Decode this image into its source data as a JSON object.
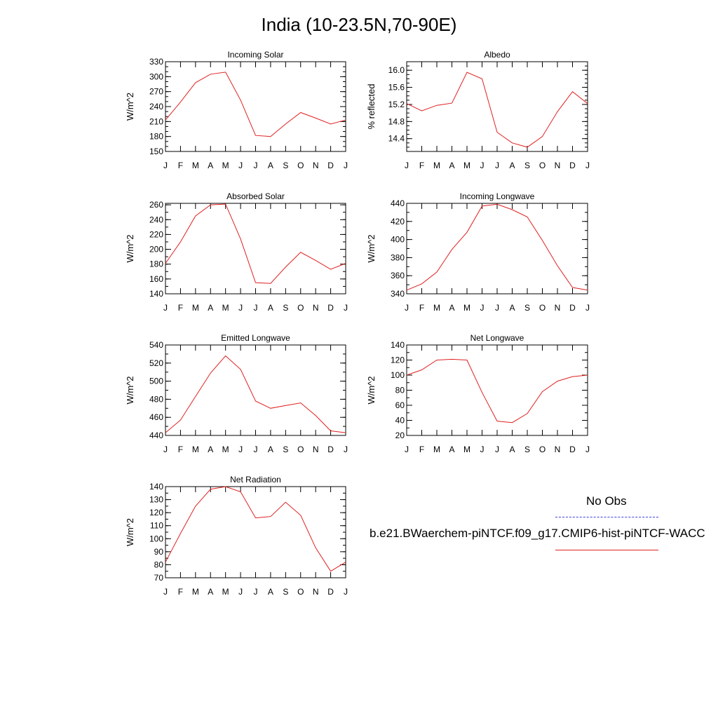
{
  "title": "India (10-23.5N,70-90E)",
  "months": [
    "J",
    "F",
    "M",
    "A",
    "M",
    "J",
    "J",
    "A",
    "S",
    "O",
    "N",
    "D",
    "J"
  ],
  "legend": {
    "obs_label": "No Obs",
    "model_label": "b.e21.BWaerchem-piNTCF.f09_g17.CMIP6-hist-piNTCF-WACC",
    "obs_color": "#4040e0",
    "model_color": "#e02020"
  },
  "chart_data": [
    {
      "type": "line",
      "title": "Incoming Solar",
      "ylabel": "W/m^2",
      "ylim": [
        150,
        330
      ],
      "yticks": [
        150,
        180,
        210,
        240,
        270,
        300,
        330
      ],
      "ytick_labels": [
        "150",
        "180",
        "210",
        "240",
        "270",
        "300",
        "330"
      ],
      "y_minor": 10,
      "x": [
        "J",
        "F",
        "M",
        "A",
        "M",
        "J",
        "J",
        "A",
        "S",
        "O",
        "N",
        "D",
        "J"
      ],
      "series": [
        {
          "values": [
            213,
            249,
            288,
            305,
            309,
            253,
            182,
            180,
            205,
            228,
            217,
            205,
            213
          ]
        }
      ]
    },
    {
      "type": "line",
      "title": "Albedo",
      "ylabel": "% reflected",
      "ylim": [
        14.1,
        16.2
      ],
      "yticks": [
        14.4,
        14.8,
        15.2,
        15.6,
        16.0
      ],
      "ytick_labels": [
        "14.4",
        "14.8",
        "15.2",
        "15.6",
        "16.0"
      ],
      "y_minor": 0.1,
      "x": [
        "J",
        "F",
        "M",
        "A",
        "M",
        "J",
        "J",
        "A",
        "S",
        "O",
        "N",
        "D",
        "J"
      ],
      "series": [
        {
          "values": [
            15.22,
            15.05,
            15.18,
            15.23,
            15.95,
            15.8,
            14.55,
            14.3,
            14.2,
            14.45,
            15.03,
            15.5,
            15.22
          ]
        }
      ]
    },
    {
      "type": "line",
      "title": "Absorbed Solar",
      "ylabel": "W/m^2",
      "ylim": [
        140,
        262
      ],
      "yticks": [
        140,
        160,
        180,
        200,
        220,
        240,
        260
      ],
      "ytick_labels": [
        "140",
        "160",
        "180",
        "200",
        "220",
        "240",
        "260"
      ],
      "y_minor": 10,
      "x": [
        "J",
        "F",
        "M",
        "A",
        "M",
        "J",
        "J",
        "A",
        "S",
        "O",
        "N",
        "D",
        "J"
      ],
      "series": [
        {
          "values": [
            181,
            210,
            245,
            260,
            261,
            214,
            155,
            154,
            176,
            196,
            185,
            173,
            181
          ]
        }
      ]
    },
    {
      "type": "line",
      "title": "Incoming Longwave",
      "ylabel": "W/m^2",
      "ylim": [
        340,
        440
      ],
      "yticks": [
        340,
        360,
        380,
        400,
        420,
        440
      ],
      "ytick_labels": [
        "340",
        "360",
        "380",
        "400",
        "420",
        "440"
      ],
      "y_minor": 10,
      "x": [
        "J",
        "F",
        "M",
        "A",
        "M",
        "J",
        "J",
        "A",
        "S",
        "O",
        "N",
        "D",
        "J"
      ],
      "series": [
        {
          "values": [
            344,
            351,
            364,
            389,
            408,
            437,
            439,
            433,
            425,
            399,
            371,
            347,
            344
          ]
        }
      ]
    },
    {
      "type": "line",
      "title": "Emitted Longwave",
      "ylabel": "W/m^2",
      "ylim": [
        440,
        540
      ],
      "yticks": [
        440,
        460,
        480,
        500,
        520,
        540
      ],
      "ytick_labels": [
        "440",
        "460",
        "480",
        "500",
        "520",
        "540"
      ],
      "y_minor": 10,
      "x": [
        "J",
        "F",
        "M",
        "A",
        "M",
        "J",
        "J",
        "A",
        "S",
        "O",
        "N",
        "D",
        "J"
      ],
      "series": [
        {
          "values": [
            443,
            457,
            483,
            509,
            528,
            513,
            478,
            470,
            473,
            476,
            462,
            445,
            443
          ]
        }
      ]
    },
    {
      "type": "line",
      "title": "Net Longwave",
      "ylabel": "W/m^2",
      "ylim": [
        20,
        140
      ],
      "yticks": [
        20,
        40,
        60,
        80,
        100,
        120,
        140
      ],
      "ytick_labels": [
        "20",
        "40",
        "60",
        "80",
        "100",
        "120",
        "140"
      ],
      "y_minor": 10,
      "x": [
        "J",
        "F",
        "M",
        "A",
        "M",
        "J",
        "J",
        "A",
        "S",
        "O",
        "N",
        "D",
        "J"
      ],
      "series": [
        {
          "values": [
            100,
            107,
            120,
            121,
            120,
            77,
            39,
            37,
            49,
            78,
            92,
            98,
            100
          ]
        }
      ]
    },
    {
      "type": "line",
      "title": "Net Radiation",
      "ylabel": "W/m^2",
      "ylim": [
        70,
        140
      ],
      "yticks": [
        70,
        80,
        90,
        100,
        110,
        120,
        130,
        140
      ],
      "ytick_labels": [
        "70",
        "80",
        "90",
        "100",
        "110",
        "120",
        "130",
        "140"
      ],
      "y_minor": 5,
      "x": [
        "J",
        "F",
        "M",
        "A",
        "M",
        "J",
        "J",
        "A",
        "S",
        "O",
        "N",
        "D",
        "J"
      ],
      "series": [
        {
          "values": [
            82,
            104,
            125,
            138,
            140,
            136,
            116,
            117,
            128,
            118,
            93,
            75,
            82
          ]
        }
      ]
    }
  ]
}
